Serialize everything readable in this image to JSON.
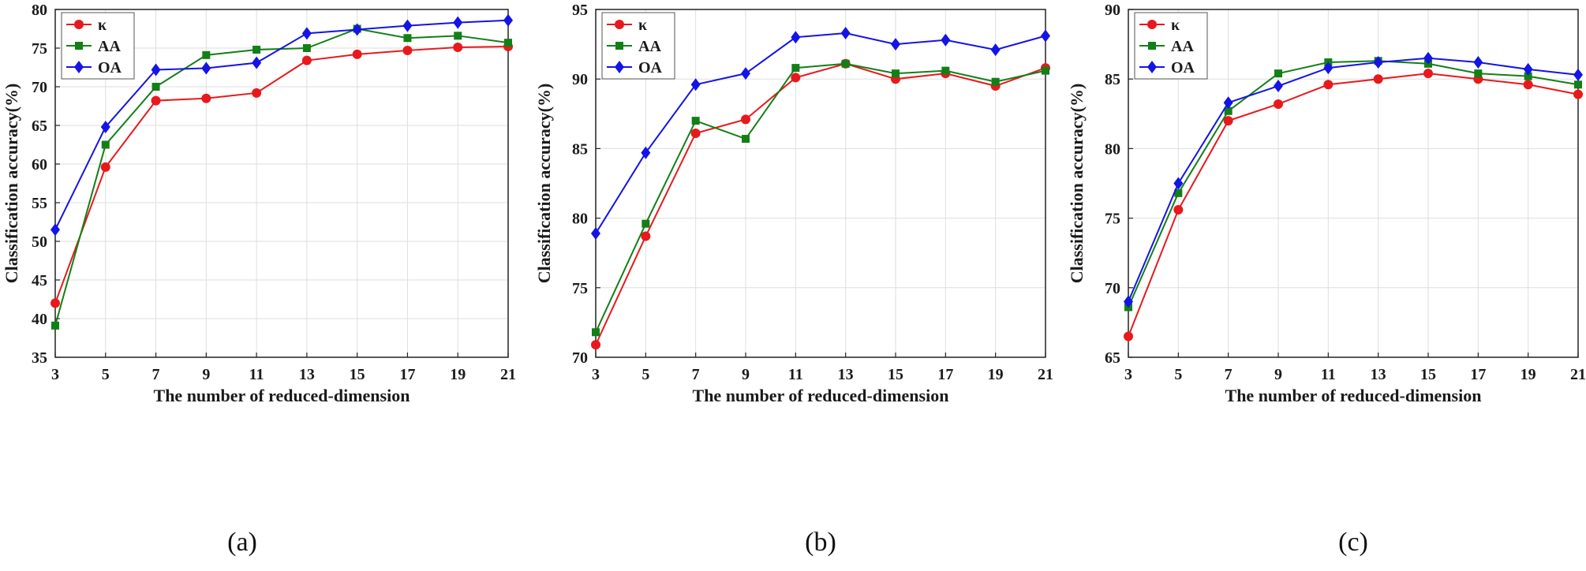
{
  "colors": {
    "kappa": "#e8191c",
    "AA": "#137f17",
    "OA": "#1414e6",
    "grid": "#dedede",
    "axis": "#222222"
  },
  "chart_data": [
    {
      "type": "line",
      "caption": "(a)",
      "xlabel": "The number of reduced-dimension",
      "ylabel": "Classification accuracy(%)",
      "x": [
        3,
        5,
        7,
        9,
        11,
        13,
        15,
        17,
        19,
        21
      ],
      "xlim": [
        3,
        21
      ],
      "ylim": [
        35,
        80
      ],
      "yticks": [
        35,
        40,
        45,
        50,
        55,
        60,
        65,
        70,
        75,
        80
      ],
      "grid": true,
      "legend": "top-left",
      "series": [
        {
          "name": "κ",
          "marker": "circle",
          "color": "#e8191c",
          "values": [
            42.0,
            59.6,
            68.2,
            68.5,
            69.2,
            73.4,
            74.2,
            74.7,
            75.1,
            75.2
          ]
        },
        {
          "name": "AA",
          "marker": "square",
          "color": "#137f17",
          "values": [
            39.1,
            62.5,
            70.0,
            74.1,
            74.8,
            75.0,
            77.5,
            76.3,
            76.6,
            75.7
          ]
        },
        {
          "name": "OA",
          "marker": "diamond",
          "color": "#1414e6",
          "values": [
            51.5,
            64.8,
            72.2,
            72.4,
            73.1,
            76.9,
            77.4,
            77.9,
            78.3,
            78.6
          ]
        }
      ]
    },
    {
      "type": "line",
      "caption": "(b)",
      "xlabel": "The number of reduced-dimension",
      "ylabel": "Classification accuracy(%)",
      "x": [
        3,
        5,
        7,
        9,
        11,
        13,
        15,
        17,
        19,
        21
      ],
      "xlim": [
        3,
        21
      ],
      "ylim": [
        70,
        95
      ],
      "yticks": [
        70,
        75,
        80,
        85,
        90,
        95
      ],
      "grid": true,
      "legend": "top-left",
      "series": [
        {
          "name": "κ",
          "marker": "circle",
          "color": "#e8191c",
          "values": [
            70.9,
            78.7,
            86.1,
            87.1,
            90.1,
            91.1,
            90.0,
            90.4,
            89.5,
            90.8
          ]
        },
        {
          "name": "AA",
          "marker": "square",
          "color": "#137f17",
          "values": [
            71.8,
            79.6,
            87.0,
            85.7,
            90.8,
            91.1,
            90.4,
            90.6,
            89.8,
            90.6
          ]
        },
        {
          "name": "OA",
          "marker": "diamond",
          "color": "#1414e6",
          "values": [
            78.9,
            84.7,
            89.6,
            90.4,
            93.0,
            93.3,
            92.5,
            92.8,
            92.1,
            93.1
          ]
        }
      ]
    },
    {
      "type": "line",
      "caption": "(c)",
      "xlabel": "The number of reduced-dimension",
      "ylabel": "Classification accuracy(%)",
      "x": [
        3,
        5,
        7,
        9,
        11,
        13,
        15,
        17,
        19,
        21
      ],
      "xlim": [
        3,
        21
      ],
      "ylim": [
        65,
        90
      ],
      "yticks": [
        65,
        70,
        75,
        80,
        85,
        90
      ],
      "grid": true,
      "legend": "top-left",
      "series": [
        {
          "name": "κ",
          "marker": "circle",
          "color": "#e8191c",
          "values": [
            66.5,
            75.6,
            82.0,
            83.2,
            84.6,
            85.0,
            85.4,
            85.0,
            84.6,
            83.9
          ]
        },
        {
          "name": "AA",
          "marker": "square",
          "color": "#137f17",
          "values": [
            68.6,
            76.8,
            82.7,
            85.4,
            86.2,
            86.3,
            86.1,
            85.4,
            85.2,
            84.6
          ]
        },
        {
          "name": "OA",
          "marker": "diamond",
          "color": "#1414e6",
          "values": [
            69.0,
            77.5,
            83.3,
            84.5,
            85.8,
            86.2,
            86.5,
            86.2,
            85.7,
            85.3
          ]
        }
      ]
    }
  ]
}
